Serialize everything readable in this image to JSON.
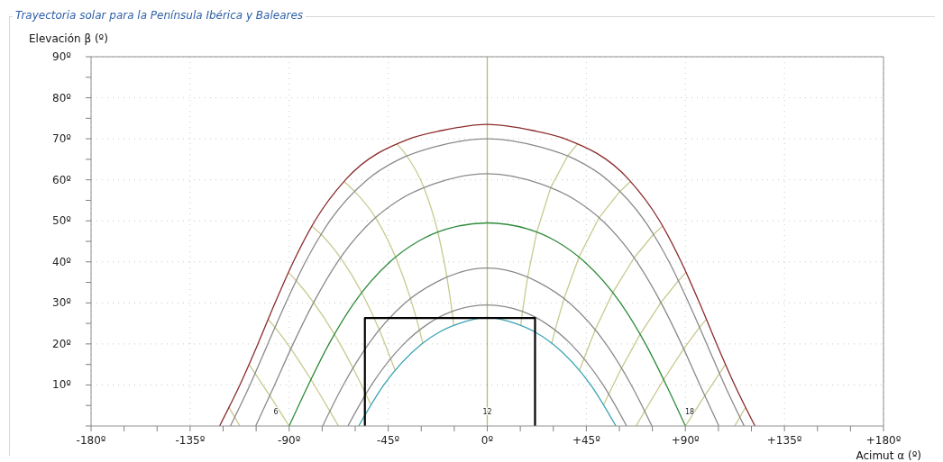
{
  "chart_data": {
    "type": "line",
    "title": "Trayectoria solar para la Península Ibérica y Baleares",
    "xlabel": "Acimut α (º)",
    "ylabel": "Elevación β (º)",
    "xlim": [
      -180,
      180
    ],
    "xticks": [
      {
        "value": -180,
        "label": "-180º"
      },
      {
        "value": -165,
        "label": null
      },
      {
        "value": -150,
        "label": null
      },
      {
        "value": -135,
        "label": "-135º"
      },
      {
        "value": -120,
        "label": null
      },
      {
        "value": -105,
        "label": null
      },
      {
        "value": -90,
        "label": "-90º"
      },
      {
        "value": -75,
        "label": null
      },
      {
        "value": -60,
        "label": null
      },
      {
        "value": -45,
        "label": "-45º"
      },
      {
        "value": -30,
        "label": null
      },
      {
        "value": -15,
        "label": null
      },
      {
        "value": 0,
        "label": "0º"
      },
      {
        "value": 15,
        "label": null
      },
      {
        "value": 30,
        "label": null
      },
      {
        "value": 45,
        "label": "+45º"
      },
      {
        "value": 60,
        "label": null
      },
      {
        "value": 75,
        "label": null
      },
      {
        "value": 90,
        "label": "+90º"
      },
      {
        "value": 105,
        "label": null
      },
      {
        "value": 120,
        "label": null
      },
      {
        "value": 135,
        "label": "+135º"
      },
      {
        "value": 150,
        "label": null
      },
      {
        "value": 165,
        "label": null
      },
      {
        "value": 180,
        "label": "+180º"
      }
    ],
    "ylim": [
      0,
      90
    ],
    "yticks": [
      {
        "value": 0,
        "label": null
      },
      {
        "value": 5,
        "label": null
      },
      {
        "value": 10,
        "label": "10º"
      },
      {
        "value": 15,
        "label": null
      },
      {
        "value": 20,
        "label": "20º"
      },
      {
        "value": 25,
        "label": null
      },
      {
        "value": 30,
        "label": "30º"
      },
      {
        "value": 35,
        "label": null
      },
      {
        "value": 40,
        "label": "40º"
      },
      {
        "value": 45,
        "label": null
      },
      {
        "value": 50,
        "label": "50º"
      },
      {
        "value": 55,
        "label": null
      },
      {
        "value": 60,
        "label": "60º"
      },
      {
        "value": 65,
        "label": null
      },
      {
        "value": 70,
        "label": "70º"
      },
      {
        "value": 75,
        "label": null
      },
      {
        "value": 80,
        "label": "80º"
      },
      {
        "value": 85,
        "label": null
      },
      {
        "value": 90,
        "label": "90º"
      }
    ],
    "grid": true,
    "marker": "none",
    "annotations": [
      {
        "text": "6",
        "x": -96,
        "y": 3.5
      },
      {
        "text": "12",
        "x": 0,
        "y": 3.5
      },
      {
        "text": "18",
        "x": 92,
        "y": 3.5
      }
    ],
    "series": [
      {
        "color": "#c9c98f",
        "x": [
          41.1,
          36.5,
          28.8,
          22.5,
          18.3,
          16.0,
          15.2
        ],
        "values": [
          68.8,
          65.8,
          58.1,
          47.3,
          36.2,
          27.9,
          24.5
        ]
      },
      {
        "color": "#c9c98f",
        "x": [
          -41.1,
          -36.5,
          -28.8,
          -22.5,
          -18.3,
          -16.0,
          -15.2
        ],
        "values": [
          68.8,
          65.8,
          58.1,
          47.3,
          36.2,
          27.9,
          24.5
        ]
      },
      {
        "color": "#c9c98f",
        "x": [
          65.1,
          60.3,
          50.8,
          41.7,
          34.9,
          30.8,
          29.3
        ],
        "values": [
          59.6,
          57.2,
          50.8,
          41.2,
          31.1,
          23.4,
          20.2
        ]
      },
      {
        "color": "#c9c98f",
        "x": [
          -65.1,
          -60.3,
          -50.8,
          -41.7,
          -34.9,
          -30.8,
          -29.3
        ],
        "values": [
          59.6,
          57.2,
          50.8,
          41.2,
          31.1,
          23.4,
          20.2
        ]
      },
      {
        "color": "#c9c98f",
        "x": [
          79.6,
          75.5,
          66.7,
          57.0,
          49.0,
          43.9,
          41.9
        ],
        "values": [
          48.7,
          46.7,
          41.0,
          32.5,
          23.4,
          16.4,
          13.6
        ]
      },
      {
        "color": "#c9c98f",
        "x": [
          -79.6,
          -75.5,
          -66.7,
          -57.0,
          -49.0,
          -43.9,
          -41.9
        ],
        "values": [
          48.7,
          46.7,
          41.0,
          32.5,
          23.4,
          16.4,
          13.6
        ]
      },
      {
        "color": "#c9c98f",
        "x": [
          90.3,
          86.8,
          78.9,
          69.4,
          61.0,
          55.2,
          52.9
        ],
        "values": [
          37.4,
          35.4,
          30.1,
          22.3,
          14.1,
          7.8,
          5.2
        ]
      },
      {
        "color": "#c9c98f",
        "x": [
          -90.3,
          -86.8,
          -78.9,
          -69.4,
          -61.0,
          -55.2,
          -52.9
        ],
        "values": [
          37.4,
          35.4,
          30.1,
          22.3,
          14.1,
          7.8,
          5.2
        ]
      },
      {
        "color": "#c9c98f",
        "x": [
          99.5,
          96.4,
          89.2,
          80.1,
          71.5,
          67.6
        ],
        "values": [
          26.0,
          24.0,
          18.8,
          11.3,
          3.6,
          0
        ]
      },
      {
        "color": "#c9c98f",
        "x": [
          -99.5,
          -96.4,
          -89.2,
          -80.1,
          -71.5,
          -67.6
        ],
        "values": [
          26.0,
          24.0,
          18.8,
          11.3,
          3.6,
          0
        ]
      },
      {
        "color": "#c9c98f",
        "x": [
          108.2,
          105.5,
          98.8,
          90
        ],
        "values": [
          15.0,
          12.8,
          7.4,
          0
        ]
      },
      {
        "color": "#c9c98f",
        "x": [
          -108.2,
          -105.5,
          -98.8,
          -90
        ],
        "values": [
          15.0,
          12.8,
          7.4,
          0
        ]
      },
      {
        "color": "#c9c98f",
        "x": [
          117.3,
          114.7,
          112.4
        ],
        "values": [
          4.5,
          2.1,
          0
        ]
      },
      {
        "color": "#c9c98f",
        "x": [
          -117.3,
          -114.7,
          -112.4
        ],
        "values": [
          4.5,
          2.1,
          0
        ]
      },
      {
        "color": "#b9b97a",
        "x": [
          0,
          0
        ],
        "values": [
          0,
          90
        ]
      },
      {
        "color": "#8b2b2b",
        "x": [
          -121.6,
          -112.4,
          -104.2,
          -96.4,
          -88.1,
          -78.3,
          -64.4,
          -35.3,
          -20.8,
          0,
          20.8,
          35.3,
          64.4,
          78.3,
          88.1,
          96.4,
          104.2,
          112.4,
          121.6
        ],
        "values": [
          0,
          10,
          20,
          30,
          40,
          50,
          60,
          70,
          72,
          73.5,
          72,
          70,
          60,
          50,
          40,
          30,
          20,
          10,
          0
        ]
      },
      {
        "color": "#8a8a8a",
        "x": [
          -116.7,
          -107.8,
          -99.7,
          -91.5,
          -82.6,
          -71.5,
          -54.6,
          -39.9,
          -24.0,
          0,
          24.0,
          39.9,
          54.6,
          71.5,
          82.6,
          91.5,
          99.7,
          107.8,
          116.7
        ],
        "values": [
          0,
          10,
          20,
          30,
          40,
          50,
          60,
          65,
          68,
          70,
          68,
          65,
          60,
          50,
          40,
          30,
          20,
          10,
          0
        ]
      },
      {
        "color": "#8a8a8a",
        "x": [
          -105.2,
          -96.6,
          -88.2,
          -79.0,
          -68.0,
          -52.4,
          -40.3,
          -24.2,
          0,
          24.2,
          40.3,
          52.4,
          68.0,
          79.0,
          88.2,
          96.6,
          105.2
        ],
        "values": [
          0,
          10,
          20,
          30,
          40,
          50,
          55,
          59,
          61.5,
          59,
          55,
          50,
          40,
          30,
          20,
          10,
          0
        ]
      },
      {
        "color": "#2e8b3a",
        "x": [
          -90,
          -81.3,
          -71.9,
          -60.5,
          -44.2,
          -31.4,
          -18.5,
          0,
          18.5,
          31.4,
          44.2,
          60.5,
          71.9,
          81.3,
          90
        ],
        "values": [
          0,
          10,
          20,
          30,
          40,
          45,
          48,
          49.5,
          48,
          45,
          40,
          30,
          20,
          10,
          0
        ]
      },
      {
        "color": "#8a8a8a",
        "x": [
          -74.8,
          -65.4,
          -53.9,
          -37.3,
          -23.4,
          0,
          23.4,
          37.3,
          53.9,
          65.4,
          74.8
        ],
        "values": [
          0,
          10,
          20,
          30,
          35,
          38.5,
          35,
          30,
          20,
          10,
          0
        ]
      },
      {
        "color": "#8a8a8a",
        "x": [
          -63.3,
          -52.6,
          -37.9,
          -26.6,
          -15.5,
          0,
          15.5,
          26.6,
          37.9,
          52.6,
          63.3
        ],
        "values": [
          0,
          10,
          20,
          25,
          28,
          29.5,
          28,
          25,
          20,
          10,
          0
        ]
      },
      {
        "color": "#3aa3b4",
        "x": [
          -58.4,
          -47.0,
          -29.8,
          -21.4,
          -12.7,
          0,
          12.7,
          21.4,
          29.8,
          47.0,
          58.4
        ],
        "values": [
          0,
          10,
          20,
          23,
          25,
          26.5,
          25,
          23,
          20,
          10,
          0
        ]
      },
      {
        "color": "#000000",
        "x": [
          -55.6,
          -55.6,
          21.7,
          21.7
        ],
        "values": [
          0,
          26.3,
          26.3,
          0
        ]
      }
    ]
  }
}
